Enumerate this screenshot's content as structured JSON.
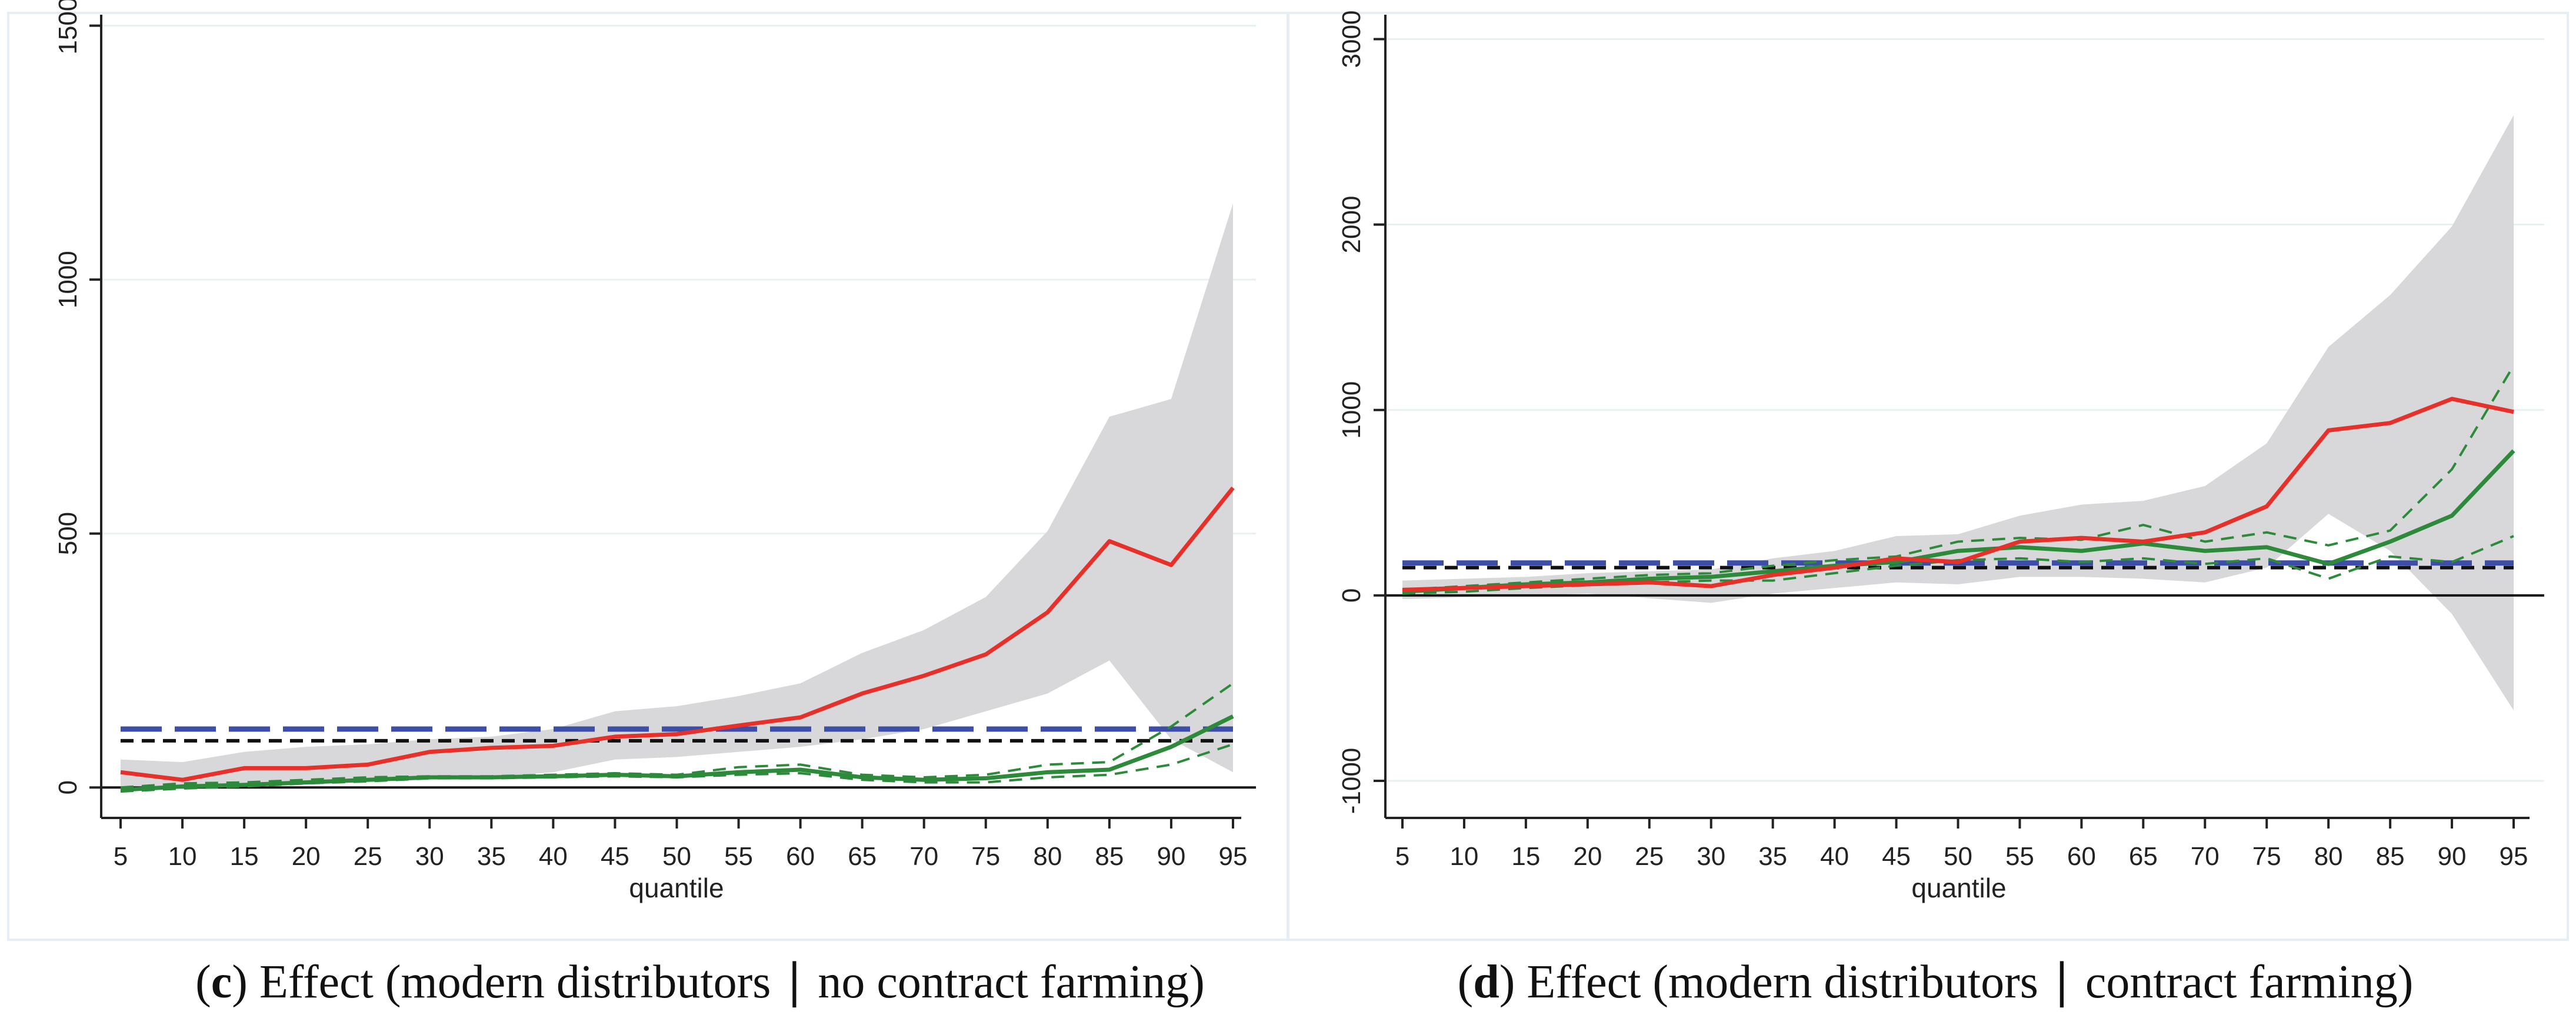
{
  "chart_data": [
    {
      "type": "line",
      "panel": "c",
      "caption_letter": "c",
      "caption_text": ") Effect (modern distributors ∣ no contract farming)",
      "xlabel": "quantile",
      "ylabel": "",
      "x": [
        5,
        10,
        15,
        20,
        25,
        30,
        35,
        40,
        45,
        50,
        55,
        60,
        65,
        70,
        75,
        80,
        85,
        90,
        95
      ],
      "xticks": [
        "5",
        "10",
        "15",
        "20",
        "25",
        "30",
        "35",
        "40",
        "45",
        "50",
        "55",
        "60",
        "65",
        "70",
        "75",
        "80",
        "85",
        "90",
        "95"
      ],
      "yticks": [
        0,
        500,
        1000,
        1500
      ],
      "ylim": [
        -60,
        1510
      ],
      "grid": "horizontal",
      "band": {
        "name": "confidence band",
        "color": "#d8d8da",
        "lower": [
          0,
          0,
          5,
          10,
          12,
          18,
          20,
          30,
          55,
          60,
          70,
          80,
          95,
          115,
          150,
          185,
          250,
          95,
          30
        ],
        "upper": [
          55,
          50,
          70,
          80,
          85,
          95,
          100,
          115,
          150,
          160,
          180,
          205,
          265,
          310,
          375,
          505,
          730,
          765,
          1150
        ]
      },
      "series": [
        {
          "name": "red line",
          "color": "#e8302a",
          "style": "solid",
          "values": [
            30,
            15,
            38,
            38,
            45,
            70,
            78,
            82,
            100,
            105,
            122,
            138,
            185,
            220,
            262,
            345,
            485,
            438,
            590
          ]
        },
        {
          "name": "green line",
          "color": "#2c8a3a",
          "style": "solid",
          "values": [
            -5,
            2,
            5,
            10,
            15,
            20,
            20,
            22,
            25,
            22,
            30,
            35,
            20,
            15,
            18,
            30,
            35,
            80,
            140
          ]
        },
        {
          "name": "green upper bound",
          "color": "#2c8a3a",
          "style": "dashed",
          "values": [
            0,
            8,
            10,
            15,
            20,
            22,
            22,
            25,
            28,
            25,
            40,
            45,
            25,
            20,
            25,
            45,
            50,
            120,
            205
          ]
        },
        {
          "name": "green lower bound",
          "color": "#2c8a3a",
          "style": "dashed",
          "values": [
            -8,
            -2,
            2,
            8,
            12,
            18,
            18,
            20,
            22,
            20,
            25,
            28,
            15,
            10,
            10,
            20,
            25,
            45,
            85
          ]
        },
        {
          "name": "blue long-dash line",
          "color": "#3d4da8",
          "style": "longdash",
          "values": [
            115,
            115,
            115,
            115,
            115,
            115,
            115,
            115,
            115,
            115,
            115,
            115,
            115,
            115,
            115,
            115,
            115,
            115,
            115
          ]
        },
        {
          "name": "black dashed line",
          "color": "#111111",
          "style": "dashed",
          "values": [
            92,
            92,
            92,
            92,
            92,
            92,
            92,
            92,
            92,
            92,
            92,
            92,
            92,
            92,
            92,
            92,
            92,
            92,
            92
          ]
        },
        {
          "name": "zero line",
          "color": "#111111",
          "style": "solid",
          "values": [
            0,
            0,
            0,
            0,
            0,
            0,
            0,
            0,
            0,
            0,
            0,
            0,
            0,
            0,
            0,
            0,
            0,
            0,
            0
          ]
        }
      ]
    },
    {
      "type": "line",
      "panel": "d",
      "caption_letter": "d",
      "caption_text": ") Effect (modern distributors ∣ contract farming)",
      "xlabel": "quantile",
      "ylabel": "",
      "x": [
        5,
        10,
        15,
        20,
        25,
        30,
        35,
        40,
        45,
        50,
        55,
        60,
        65,
        70,
        75,
        80,
        85,
        90,
        95
      ],
      "xticks": [
        "5",
        "10",
        "15",
        "20",
        "25",
        "30",
        "35",
        "40",
        "45",
        "50",
        "55",
        "60",
        "65",
        "70",
        "75",
        "80",
        "85",
        "90",
        "95"
      ],
      "yticks": [
        -1000,
        1000,
        2000,
        3000
      ],
      "yticks_zero": "0",
      "ylim": [
        -1200,
        3100
      ],
      "grid": "horizontal",
      "band": {
        "name": "confidence band",
        "color": "#d8d8da",
        "lower": [
          -20,
          -10,
          0,
          10,
          -15,
          -40,
          10,
          40,
          70,
          60,
          100,
          100,
          90,
          70,
          150,
          440,
          240,
          -100,
          -620
        ],
        "upper": [
          80,
          90,
          100,
          120,
          130,
          140,
          200,
          240,
          320,
          330,
          430,
          490,
          510,
          590,
          820,
          1340,
          1620,
          1990,
          2590
        ]
      },
      "series": [
        {
          "name": "red line",
          "color": "#e8302a",
          "style": "solid",
          "values": [
            30,
            40,
            50,
            60,
            70,
            50,
            110,
            150,
            200,
            180,
            290,
            310,
            290,
            340,
            480,
            890,
            930,
            1060,
            990
          ]
        },
        {
          "name": "green line",
          "color": "#2c8a3a",
          "style": "solid",
          "values": [
            20,
            40,
            60,
            70,
            90,
            100,
            130,
            160,
            180,
            240,
            260,
            240,
            280,
            240,
            260,
            170,
            290,
            430,
            780
          ]
        },
        {
          "name": "green upper bound",
          "color": "#2c8a3a",
          "style": "dashed",
          "values": [
            30,
            50,
            70,
            90,
            110,
            120,
            160,
            190,
            210,
            290,
            310,
            300,
            380,
            290,
            340,
            270,
            350,
            680,
            1240
          ]
        },
        {
          "name": "green lower bound",
          "color": "#2c8a3a",
          "style": "dashed",
          "values": [
            10,
            20,
            40,
            55,
            70,
            80,
            80,
            120,
            160,
            190,
            200,
            180,
            200,
            170,
            200,
            90,
            210,
            180,
            320
          ]
        },
        {
          "name": "blue long-dash line",
          "color": "#3d4da8",
          "style": "longdash",
          "values": [
            175,
            175,
            175,
            175,
            175,
            175,
            175,
            175,
            175,
            175,
            175,
            175,
            175,
            175,
            175,
            175,
            175,
            175,
            175
          ]
        },
        {
          "name": "black dashed line",
          "color": "#111111",
          "style": "dashed",
          "values": [
            150,
            150,
            150,
            150,
            150,
            150,
            150,
            150,
            150,
            150,
            150,
            150,
            150,
            150,
            150,
            150,
            150,
            150,
            150
          ]
        },
        {
          "name": "zero line",
          "color": "#111111",
          "style": "solid",
          "values": [
            0,
            0,
            0,
            0,
            0,
            0,
            0,
            0,
            0,
            0,
            0,
            0,
            0,
            0,
            0,
            0,
            0,
            0,
            0
          ]
        }
      ]
    }
  ]
}
